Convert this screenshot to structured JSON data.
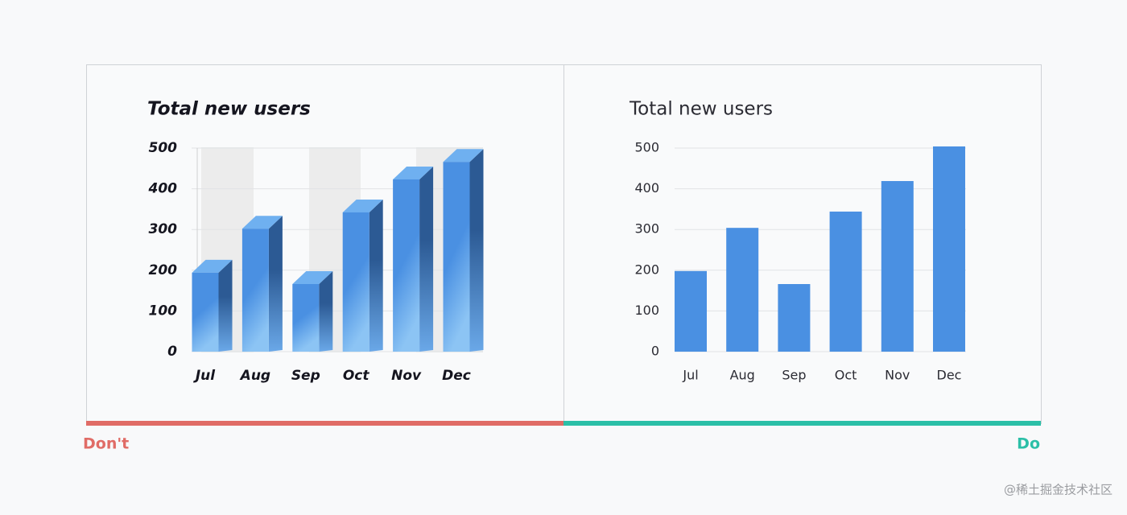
{
  "chart_data": [
    {
      "type": "bar3d",
      "title": "Total new users",
      "categories": [
        "Jul",
        "Aug",
        "Sep",
        "Oct",
        "Nov",
        "Dec"
      ],
      "values": [
        194,
        302,
        166,
        342,
        423,
        466
      ],
      "color": "#4a90e2",
      "ylim": [
        0,
        500
      ],
      "yticks": [
        0,
        100,
        200,
        300,
        400,
        500
      ],
      "grid": true
    },
    {
      "type": "bar",
      "title": "Total new users",
      "categories": [
        "Jul",
        "Aug",
        "Sep",
        "Oct",
        "Nov",
        "Dec"
      ],
      "values": [
        198,
        304,
        166,
        344,
        419,
        504
      ],
      "color": "#4a90e2",
      "ylim": [
        0,
        500
      ],
      "yticks": [
        0,
        100,
        200,
        300,
        400,
        500
      ],
      "grid": true
    }
  ],
  "verdicts": [
    "Don't",
    "Do"
  ],
  "watermark": "@稀土掘金技术社区"
}
